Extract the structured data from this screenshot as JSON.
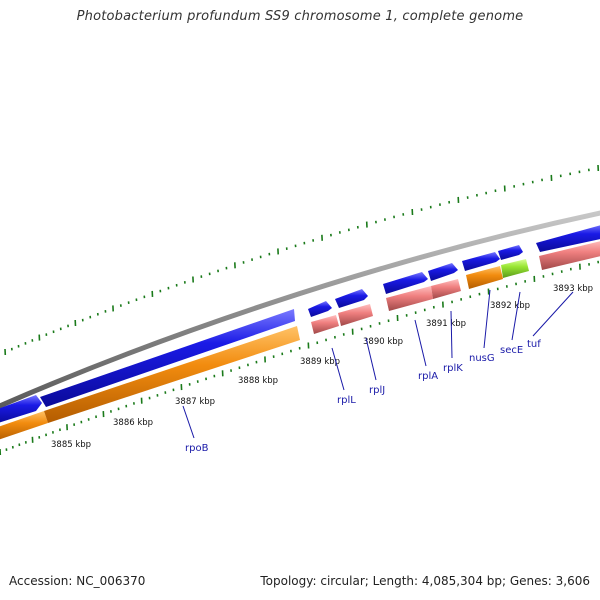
{
  "title": "Photobacterium profundum SS9 chromosome 1, complete genome",
  "footer": {
    "accession": "Accession: NC_006370",
    "summary": "Topology: circular; Length: 4,085,304 bp; Genes: 3,606"
  },
  "colors": {
    "backbone": "#8c8c8c",
    "gene_strand": "#1a1ae6",
    "cds_orange": "#f28c0f",
    "rna_pink": "#f08080",
    "rna_green": "#99e633",
    "tick_green": "#1a7a1a",
    "label_blue": "#1a1aa8"
  },
  "kbp_labels": [
    "3885 kbp",
    "3886 kbp",
    "3887 kbp",
    "3888 kbp",
    "3889 kbp",
    "3890 kbp",
    "3891 kbp",
    "3892 kbp",
    "3893 kbp"
  ],
  "genes": [
    "rpoB",
    "rplL",
    "rplJ",
    "rplA",
    "rplK",
    "nusG",
    "secE",
    "tuf"
  ]
}
